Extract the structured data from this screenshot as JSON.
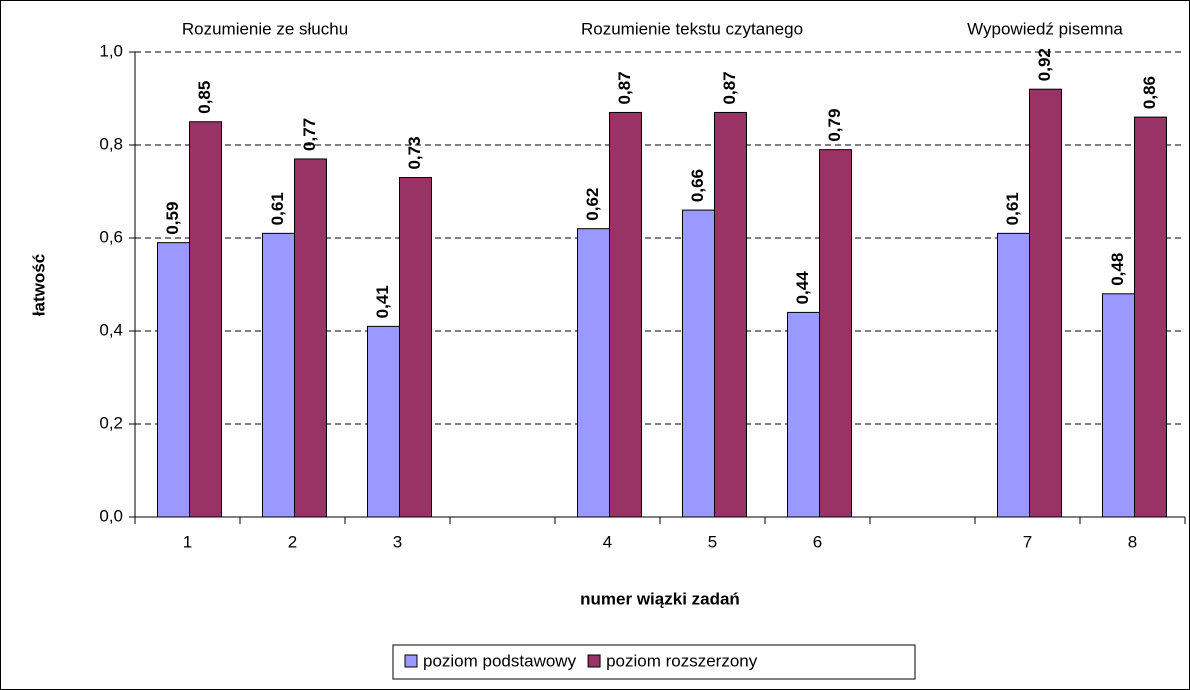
{
  "chart_data": {
    "type": "bar",
    "x_label": "numer wiązki zadań",
    "y_label": "łatwość",
    "annotations": [
      "Rozumienie ze słuchu",
      "Rozumienie tekstu czytanego",
      "Wypowiedź pisemna"
    ],
    "categories": [
      "1",
      "2",
      "3",
      null,
      "4",
      "5",
      "6",
      null,
      "7",
      "8"
    ],
    "series": [
      {
        "name": "poziom podstawowy",
        "color": "#9999ff",
        "values": [
          0.59,
          0.61,
          0.41,
          null,
          0.62,
          0.66,
          0.44,
          null,
          0.61,
          0.48
        ],
        "value_labels": [
          "0,59",
          "0,61",
          "0,41",
          null,
          "0,62",
          "0,66",
          "0,44",
          null,
          "0,61",
          "0,48"
        ]
      },
      {
        "name": "poziom rozszerzony",
        "color": "#993366",
        "values": [
          0.85,
          0.77,
          0.73,
          null,
          0.87,
          0.87,
          0.79,
          null,
          0.92,
          0.86
        ],
        "value_labels": [
          "0,85",
          "0,77",
          "0,73",
          null,
          "0,87",
          "0,87",
          "0,79",
          null,
          "0,92",
          "0,86"
        ]
      }
    ],
    "ylim": [
      0,
      1
    ],
    "yticks": [
      {
        "value": 0,
        "label": "0,0"
      },
      {
        "value": 0.2,
        "label": "0,2"
      },
      {
        "value": 0.4,
        "label": "0,4"
      },
      {
        "value": 0.6,
        "label": "0,6"
      },
      {
        "value": 0.8,
        "label": "0,8"
      },
      {
        "value": 1,
        "label": "1,0"
      }
    ],
    "grid": true,
    "legend": "bottom"
  }
}
